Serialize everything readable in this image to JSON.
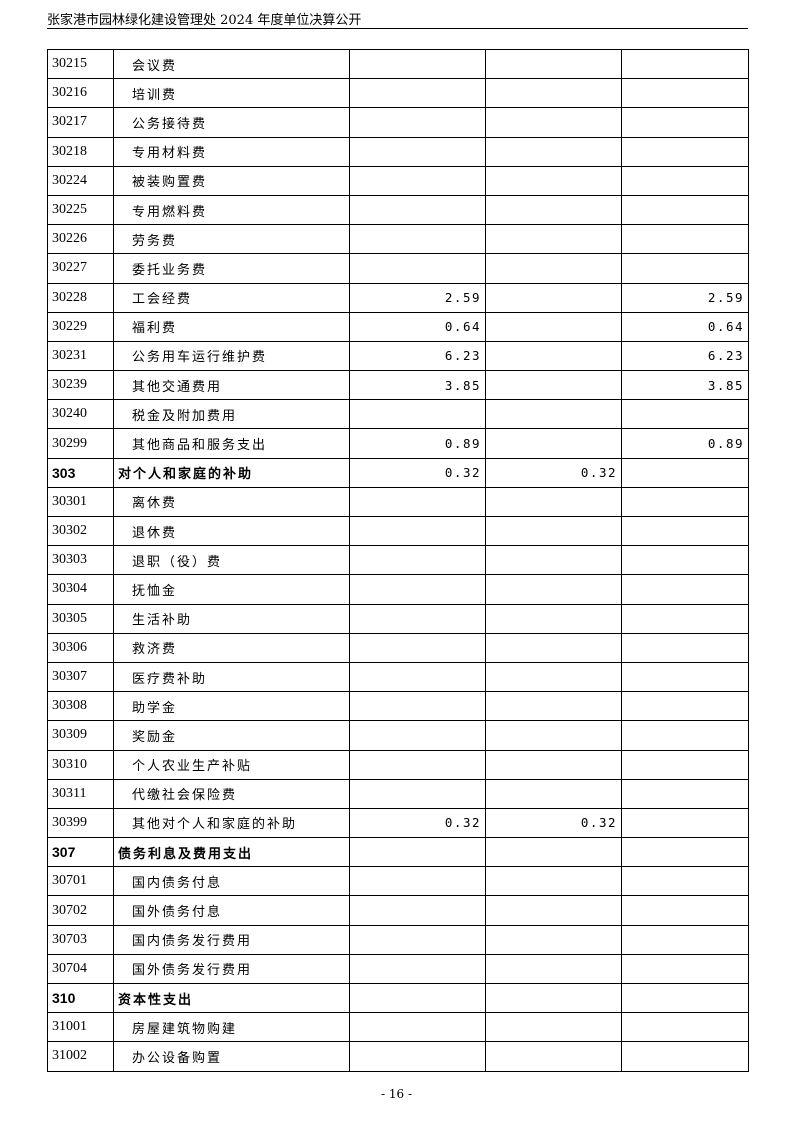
{
  "header": {
    "title": "张家港市园林绿化建设管理处 2024 年度单位决算公开"
  },
  "rows": [
    {
      "code": "30215",
      "name": "会议费",
      "c1": "",
      "c2": "",
      "c3": ""
    },
    {
      "code": "30216",
      "name": "培训费",
      "c1": "",
      "c2": "",
      "c3": ""
    },
    {
      "code": "30217",
      "name": "公务接待费",
      "c1": "",
      "c2": "",
      "c3": ""
    },
    {
      "code": "30218",
      "name": "专用材料费",
      "c1": "",
      "c2": "",
      "c3": ""
    },
    {
      "code": "30224",
      "name": "被装购置费",
      "c1": "",
      "c2": "",
      "c3": ""
    },
    {
      "code": "30225",
      "name": "专用燃料费",
      "c1": "",
      "c2": "",
      "c3": ""
    },
    {
      "code": "30226",
      "name": "劳务费",
      "c1": "",
      "c2": "",
      "c3": ""
    },
    {
      "code": "30227",
      "name": "委托业务费",
      "c1": "",
      "c2": "",
      "c3": ""
    },
    {
      "code": "30228",
      "name": "工会经费",
      "c1": "2.59",
      "c2": "",
      "c3": "2.59"
    },
    {
      "code": "30229",
      "name": "福利费",
      "c1": "0.64",
      "c2": "",
      "c3": "0.64"
    },
    {
      "code": "30231",
      "name": "公务用车运行维护费",
      "c1": "6.23",
      "c2": "",
      "c3": "6.23"
    },
    {
      "code": "30239",
      "name": "其他交通费用",
      "c1": "3.85",
      "c2": "",
      "c3": "3.85"
    },
    {
      "code": "30240",
      "name": "税金及附加费用",
      "c1": "",
      "c2": "",
      "c3": ""
    },
    {
      "code": "30299",
      "name": "其他商品和服务支出",
      "c1": "0.89",
      "c2": "",
      "c3": "0.89"
    },
    {
      "code": "303",
      "name": "对个人和家庭的补助",
      "c1": "0.32",
      "c2": "0.32",
      "c3": "",
      "bold": true
    },
    {
      "code": "30301",
      "name": "离休费",
      "c1": "",
      "c2": "",
      "c3": ""
    },
    {
      "code": "30302",
      "name": "退休费",
      "c1": "",
      "c2": "",
      "c3": ""
    },
    {
      "code": "30303",
      "name": "退职（役）费",
      "c1": "",
      "c2": "",
      "c3": ""
    },
    {
      "code": "30304",
      "name": "抚恤金",
      "c1": "",
      "c2": "",
      "c3": ""
    },
    {
      "code": "30305",
      "name": "生活补助",
      "c1": "",
      "c2": "",
      "c3": ""
    },
    {
      "code": "30306",
      "name": "救济费",
      "c1": "",
      "c2": "",
      "c3": ""
    },
    {
      "code": "30307",
      "name": "医疗费补助",
      "c1": "",
      "c2": "",
      "c3": ""
    },
    {
      "code": "30308",
      "name": "助学金",
      "c1": "",
      "c2": "",
      "c3": ""
    },
    {
      "code": "30309",
      "name": "奖励金",
      "c1": "",
      "c2": "",
      "c3": ""
    },
    {
      "code": "30310",
      "name": "个人农业生产补贴",
      "c1": "",
      "c2": "",
      "c3": ""
    },
    {
      "code": "30311",
      "name": "代缴社会保险费",
      "c1": "",
      "c2": "",
      "c3": ""
    },
    {
      "code": "30399",
      "name": "其他对个人和家庭的补助",
      "c1": "0.32",
      "c2": "0.32",
      "c3": ""
    },
    {
      "code": "307",
      "name": "债务利息及费用支出",
      "c1": "",
      "c2": "",
      "c3": "",
      "bold": true
    },
    {
      "code": "30701",
      "name": "国内债务付息",
      "c1": "",
      "c2": "",
      "c3": ""
    },
    {
      "code": "30702",
      "name": "国外债务付息",
      "c1": "",
      "c2": "",
      "c3": ""
    },
    {
      "code": "30703",
      "name": "国内债务发行费用",
      "c1": "",
      "c2": "",
      "c3": ""
    },
    {
      "code": "30704",
      "name": "国外债务发行费用",
      "c1": "",
      "c2": "",
      "c3": ""
    },
    {
      "code": "310",
      "name": "资本性支出",
      "c1": "",
      "c2": "",
      "c3": "",
      "bold": true
    },
    {
      "code": "31001",
      "name": "房屋建筑物购建",
      "c1": "",
      "c2": "",
      "c3": ""
    },
    {
      "code": "31002",
      "name": "办公设备购置",
      "c1": "",
      "c2": "",
      "c3": ""
    }
  ],
  "footer": {
    "page": "- 16 -"
  }
}
